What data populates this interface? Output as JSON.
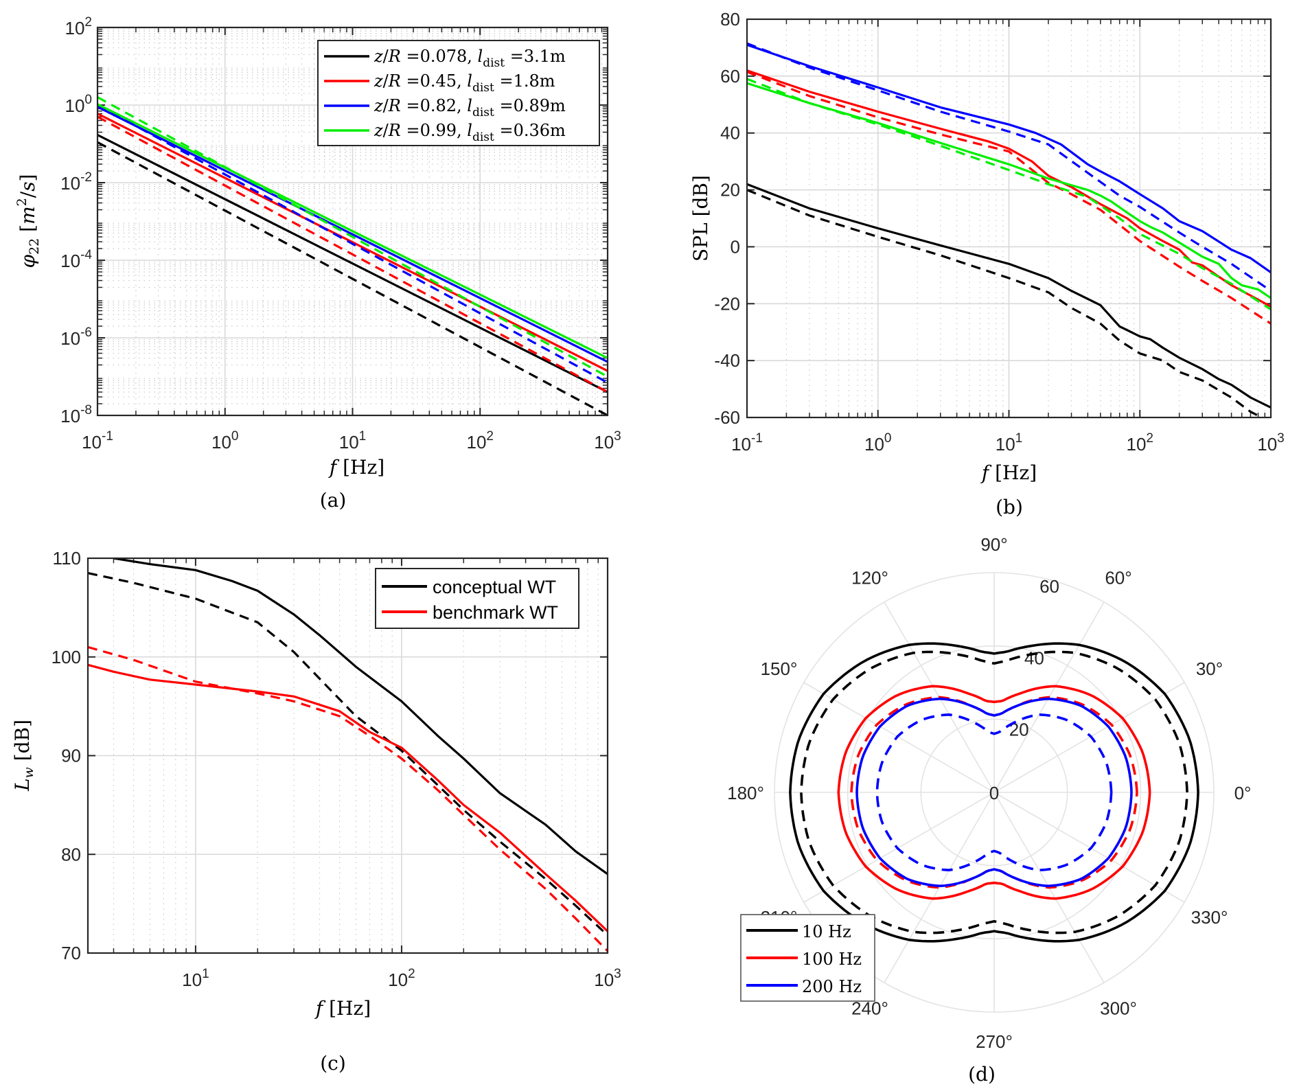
{
  "figure": {
    "panel_captions": [
      "(a)",
      "(b)",
      "(c)",
      "(d)"
    ]
  },
  "colors": {
    "black": "#000000",
    "red": "#ff0000",
    "blue": "#0000ff",
    "green": "#00ee00",
    "grid": "#d9d9d9",
    "axis": "#262626"
  },
  "chart_data": [
    {
      "id": "a",
      "type": "line",
      "title": "",
      "caption": "(a)",
      "xlabel": "f [Hz]",
      "ylabel": "φ22 [m²/s]",
      "xscale": "log",
      "yscale": "log",
      "xlim": [
        0.1,
        1000
      ],
      "ylim": [
        1e-08,
        100
      ],
      "grid": "major+minor",
      "legend_position": "top-right",
      "x_ticks": [
        0.1,
        1,
        10,
        100,
        1000
      ],
      "x_tick_labels": [
        {
          "base": "10",
          "exp": "-1"
        },
        {
          "base": "10",
          "exp": "0"
        },
        {
          "base": "10",
          "exp": "1"
        },
        {
          "base": "10",
          "exp": "2"
        },
        {
          "base": "10",
          "exp": "3"
        }
      ],
      "y_ticks": [
        1e-08,
        1e-06,
        0.0001,
        0.01,
        1,
        100
      ],
      "y_tick_labels": [
        {
          "base": "10",
          "exp": "-8"
        },
        {
          "base": "10",
          "exp": "-6"
        },
        {
          "base": "10",
          "exp": "-4"
        },
        {
          "base": "10",
          "exp": "-2"
        },
        {
          "base": "10",
          "exp": "0"
        },
        {
          "base": "10",
          "exp": "2"
        }
      ],
      "legend": [
        {
          "label": "z/R =0.078, l_dist =3.1m",
          "zr": "0.078",
          "ldist": "3.1m",
          "color": "#000000"
        },
        {
          "label": "z/R =0.45, l_dist =1.8m",
          "zr": "0.45",
          "ldist": "1.8m",
          "color": "#ff0000"
        },
        {
          "label": "z/R =0.82, l_dist =0.89m",
          "zr": "0.82",
          "ldist": "0.89m",
          "color": "#0000ff"
        },
        {
          "label": "z/R =0.99, l_dist =0.36m",
          "zr": "0.99",
          "ldist": "0.36m",
          "color": "#00ee00"
        }
      ],
      "series": [
        {
          "name": "z/R=0.078 solid",
          "color": "#000000",
          "dash": false,
          "x": [
            0.1,
            1000
          ],
          "y": [
            0.17,
            4e-08
          ]
        },
        {
          "name": "z/R=0.078 dashed",
          "color": "#000000",
          "dash": true,
          "x": [
            0.1,
            1000
          ],
          "y": [
            0.11,
            1e-08
          ]
        },
        {
          "name": "z/R=0.45 solid",
          "color": "#ff0000",
          "dash": false,
          "x": [
            0.1,
            1000
          ],
          "y": [
            0.6,
            1.4e-07
          ]
        },
        {
          "name": "z/R=0.45 dashed",
          "color": "#ff0000",
          "dash": true,
          "x": [
            0.1,
            1000
          ],
          "y": [
            0.5,
            4e-08
          ]
        },
        {
          "name": "z/R=0.82 solid",
          "color": "#0000ff",
          "dash": false,
          "x": [
            0.1,
            1000
          ],
          "y": [
            0.9,
            2.4e-07
          ]
        },
        {
          "name": "z/R=0.82 dashed",
          "color": "#0000ff",
          "dash": true,
          "x": [
            0.1,
            1000
          ],
          "y": [
            1.0,
            7e-08
          ]
        },
        {
          "name": "z/R=0.99 solid",
          "color": "#00ee00",
          "dash": false,
          "x": [
            0.1,
            1000
          ],
          "y": [
            1.05,
            3e-07
          ]
        },
        {
          "name": "z/R=0.99 dashed",
          "color": "#00ee00",
          "dash": true,
          "x": [
            0.1,
            1000
          ],
          "y": [
            1.6,
            1e-07
          ]
        }
      ]
    },
    {
      "id": "b",
      "type": "line",
      "title": "",
      "caption": "(b)",
      "xlabel": "f [Hz]",
      "ylabel": "SPL [dB]",
      "xscale": "log",
      "yscale": "linear",
      "xlim": [
        0.1,
        1000
      ],
      "ylim": [
        -60,
        80
      ],
      "grid": "major+minor-x",
      "legend_position": "none",
      "x_ticks": [
        0.1,
        1,
        10,
        100,
        1000
      ],
      "x_tick_labels": [
        {
          "base": "10",
          "exp": "-1"
        },
        {
          "base": "10",
          "exp": "0"
        },
        {
          "base": "10",
          "exp": "1"
        },
        {
          "base": "10",
          "exp": "2"
        },
        {
          "base": "10",
          "exp": "3"
        }
      ],
      "y_ticks": [
        -60,
        -40,
        -20,
        0,
        20,
        40,
        60,
        80
      ],
      "y_tick_labels": [
        "-60",
        "-40",
        "-20",
        "0",
        "20",
        "40",
        "60",
        "80"
      ],
      "series": [
        {
          "name": "blue solid",
          "color": "#0000ff",
          "dash": false,
          "x": [
            0.1,
            0.3,
            1,
            3,
            10,
            16,
            25,
            40,
            50,
            70,
            100,
            150,
            200,
            300,
            500,
            700,
            1000
          ],
          "y": [
            71,
            63.5,
            56,
            49,
            43,
            40,
            36,
            29,
            26.5,
            23,
            18.5,
            13.5,
            9,
            5.5,
            -1,
            -4,
            -9
          ]
        },
        {
          "name": "blue dashed",
          "color": "#0000ff",
          "dash": true,
          "x": [
            0.1,
            0.3,
            1,
            3,
            10,
            20,
            40,
            70,
            100,
            200,
            300,
            500,
            1000
          ],
          "y": [
            71.5,
            63,
            55,
            47.5,
            40.5,
            36,
            26,
            18,
            14,
            5,
            0,
            -6,
            -15.5
          ]
        },
        {
          "name": "red solid",
          "color": "#ff0000",
          "dash": false,
          "x": [
            0.1,
            0.3,
            1,
            3,
            7,
            10,
            15,
            20,
            30,
            50,
            80,
            100,
            150,
            200,
            250,
            300,
            400,
            500,
            1000
          ],
          "y": [
            62,
            54.5,
            47.5,
            41.5,
            37,
            34.5,
            30,
            25,
            21,
            15,
            10,
            6.5,
            2,
            -1,
            -5.5,
            -6.5,
            -10.5,
            -13.5,
            -21
          ]
        },
        {
          "name": "red dashed",
          "color": "#ff0000",
          "dash": true,
          "x": [
            0.1,
            0.3,
            1,
            3,
            10,
            20,
            30,
            50,
            100,
            200,
            300,
            500,
            1000
          ],
          "y": [
            61.5,
            53,
            45.5,
            39.5,
            33.5,
            22.5,
            18.5,
            13,
            2,
            -7,
            -12,
            -18,
            -27
          ]
        },
        {
          "name": "green solid",
          "color": "#00ee00",
          "dash": false,
          "x": [
            0.1,
            0.3,
            1,
            3,
            10,
            20,
            40,
            50,
            60,
            80,
            100,
            120,
            150,
            200,
            300,
            400,
            500,
            600,
            800,
            1000
          ],
          "y": [
            57.5,
            50.5,
            43.5,
            36.5,
            29,
            24,
            20,
            18,
            16,
            12,
            9,
            7,
            5,
            1.5,
            -3.5,
            -6,
            -11,
            -13.5,
            -15,
            -18
          ]
        },
        {
          "name": "green dashed",
          "color": "#00ee00",
          "dash": true,
          "x": [
            0.1,
            0.3,
            1,
            3,
            10,
            20,
            40,
            70,
            100,
            200,
            300,
            500,
            1000
          ],
          "y": [
            59,
            50.5,
            43,
            35.5,
            27,
            22,
            17.5,
            10,
            4.5,
            -2.5,
            -7.5,
            -13,
            -22
          ]
        },
        {
          "name": "black solid",
          "color": "#000000",
          "dash": false,
          "x": [
            0.1,
            0.3,
            1,
            3,
            10,
            20,
            30,
            50,
            70,
            100,
            120,
            150,
            200,
            300,
            400,
            500,
            700,
            1000
          ],
          "y": [
            22,
            13.5,
            6.5,
            0.5,
            -6,
            -11,
            -15.5,
            -20.5,
            -28,
            -31.5,
            -32.5,
            -35.5,
            -39,
            -43,
            -46.5,
            -48.5,
            -53,
            -56.5
          ]
        },
        {
          "name": "black dashed",
          "color": "#000000",
          "dash": true,
          "x": [
            0.1,
            0.3,
            1,
            3,
            10,
            20,
            30,
            50,
            70,
            100,
            150,
            200,
            300,
            500,
            700,
            850
          ],
          "y": [
            20,
            11,
            3.5,
            -3,
            -11,
            -16,
            -21.5,
            -27,
            -33,
            -37.5,
            -40,
            -44,
            -47,
            -53,
            -58,
            -60
          ]
        }
      ]
    },
    {
      "id": "c",
      "type": "line",
      "title": "",
      "caption": "(c)",
      "xlabel": "f [Hz]",
      "ylabel": "L_w [dB]",
      "xscale": "log",
      "yscale": "linear",
      "xlim": [
        3,
        1000
      ],
      "ylim": [
        70,
        110
      ],
      "grid": "major+minor-x",
      "legend_position": "top-right",
      "x_ticks": [
        10,
        100,
        1000
      ],
      "x_tick_labels": [
        {
          "base": "10",
          "exp": "1"
        },
        {
          "base": "10",
          "exp": "2"
        },
        {
          "base": "10",
          "exp": "3"
        }
      ],
      "y_ticks": [
        70,
        80,
        90,
        100,
        110
      ],
      "y_tick_labels": [
        "70",
        "80",
        "90",
        "100",
        "110"
      ],
      "legend": [
        {
          "label": "conceptual WT",
          "color": "#000000"
        },
        {
          "label": "benchmark WT",
          "color": "#ff0000"
        }
      ],
      "series": [
        {
          "name": "conceptual WT solid",
          "color": "#000000",
          "dash": false,
          "x": [
            4,
            6,
            10,
            15,
            20,
            30,
            40,
            60,
            100,
            150,
            200,
            300,
            500,
            700,
            1000
          ],
          "y": [
            110,
            109.4,
            108.8,
            107.7,
            106.7,
            104.3,
            102.2,
            99,
            95.5,
            92,
            89.7,
            86.2,
            83,
            80.3,
            78
          ]
        },
        {
          "name": "conceptual WT dashed",
          "color": "#000000",
          "dash": true,
          "x": [
            3,
            5,
            10,
            20,
            30,
            40,
            60,
            100,
            150,
            200,
            300,
            500,
            700,
            1000
          ],
          "y": [
            108.5,
            107.5,
            105.9,
            103.5,
            100.5,
            97.8,
            94,
            90.5,
            87,
            84.5,
            81.3,
            77.5,
            74.8,
            71.8
          ]
        },
        {
          "name": "benchmark WT solid",
          "color": "#ff0000",
          "dash": false,
          "x": [
            3,
            4,
            6,
            10,
            20,
            30,
            50,
            70,
            100,
            150,
            200,
            300,
            500,
            700,
            1000
          ],
          "y": [
            99.2,
            98.5,
            97.7,
            97.2,
            96.5,
            96,
            94.5,
            92.4,
            90.8,
            87.5,
            85,
            82.2,
            78,
            75.3,
            72.2
          ]
        },
        {
          "name": "benchmark WT dashed",
          "color": "#ff0000",
          "dash": true,
          "x": [
            3,
            5,
            10,
            20,
            30,
            50,
            70,
            100,
            150,
            200,
            300,
            500,
            700,
            1000
          ],
          "y": [
            101,
            99.7,
            97.5,
            96.3,
            95.5,
            94,
            92,
            89.7,
            86.5,
            84,
            80.5,
            76.5,
            73.5,
            70.2
          ]
        }
      ]
    },
    {
      "id": "d",
      "type": "line",
      "subtype": "polar",
      "title": "",
      "caption": "(d)",
      "rlim": [
        0,
        60
      ],
      "r_ticks": [
        0,
        20,
        40,
        60
      ],
      "r_tick_labels": [
        "0",
        "20",
        "40",
        "60"
      ],
      "theta_ticks": [
        0,
        30,
        60,
        90,
        120,
        150,
        180,
        210,
        240,
        270,
        300,
        330
      ],
      "theta_tick_labels": [
        "0°",
        "30°",
        "60°",
        "90°",
        "120°",
        "150°",
        "180°",
        "210°",
        "240°",
        "270°",
        "300°",
        "330°"
      ],
      "legend_position": "bottom-left",
      "legend": [
        {
          "label": "10 Hz",
          "color": "#000000"
        },
        {
          "label": "100 Hz",
          "color": "#ff0000"
        },
        {
          "label": "200 Hz",
          "color": "#0000ff"
        }
      ],
      "theta_deg": [
        0,
        15,
        30,
        45,
        60,
        75,
        85,
        90
      ],
      "series": [
        {
          "name": "10 Hz solid",
          "color": "#000000",
          "dash": false,
          "r": [
            55.7,
            55.3,
            53.8,
            50.5,
            46.5,
            41.5,
            38.5,
            37.9
          ]
        },
        {
          "name": "10 Hz dashed",
          "color": "#000000",
          "dash": true,
          "r": [
            52.7,
            52.3,
            50.8,
            47.8,
            44,
            39,
            36,
            35.2
          ]
        },
        {
          "name": "100 Hz solid",
          "color": "#ff0000",
          "dash": false,
          "r": [
            42.5,
            42,
            40.5,
            37.5,
            33.5,
            28,
            25,
            24.7
          ]
        },
        {
          "name": "100 Hz dashed",
          "color": "#ff0000",
          "dash": true,
          "r": [
            39,
            38.5,
            37,
            34,
            30,
            24.5,
            21.5,
            21
          ]
        },
        {
          "name": "200 Hz solid",
          "color": "#0000ff",
          "dash": false,
          "r": [
            37.5,
            37.2,
            36,
            33.5,
            29.5,
            24.5,
            21.5,
            21
          ]
        },
        {
          "name": "200 Hz dashed",
          "color": "#0000ff",
          "dash": true,
          "r": [
            32,
            31.7,
            30.5,
            28,
            24.5,
            19.5,
            16.5,
            16
          ]
        }
      ],
      "symmetry": "mirror about 0°-180° and 90°-270° axes"
    }
  ]
}
